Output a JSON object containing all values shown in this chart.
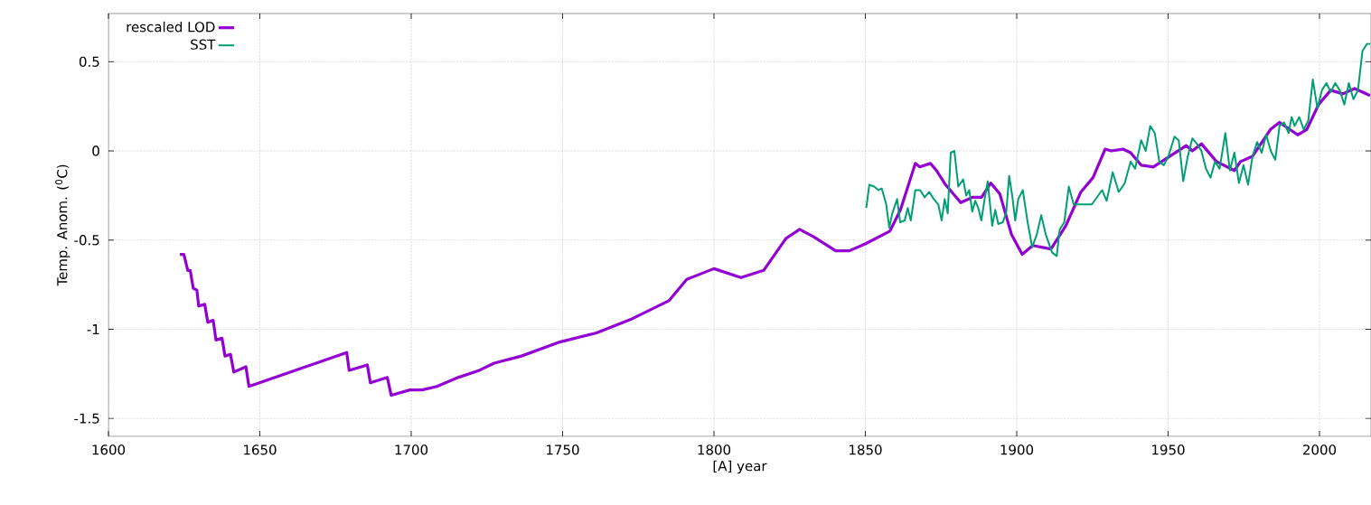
{
  "chart_data": {
    "type": "line",
    "xlabel": "[A]   year",
    "ylabel": "Temp. Anom. ($^{0}$C)",
    "xlim": [
      1600,
      2017
    ],
    "ylim": [
      -1.6,
      0.77
    ],
    "xticks": [
      1600,
      1650,
      1700,
      1750,
      1800,
      1850,
      1900,
      1950,
      2000
    ],
    "yticks": [
      -1.5,
      -1,
      -0.5,
      0,
      0.5
    ],
    "grid": true,
    "legend": "top left",
    "marker": "none",
    "line_style": "solid",
    "series": [
      {
        "name": "rescaled LOD",
        "color": "#9400d3",
        "x": [
          1623.6,
          1624.9,
          1626.2,
          1627.0,
          1628.0,
          1629.2,
          1629.8,
          1631.8,
          1632.8,
          1634.6,
          1635.5,
          1637.5,
          1638.5,
          1640.3,
          1641.4,
          1645.4,
          1646.4,
          1678.7,
          1679.5,
          1685.5,
          1686.5,
          1692.1,
          1693.4,
          1699.6,
          1703.6,
          1708.5,
          1715.5,
          1722.5,
          1727.4,
          1736.4,
          1749.3,
          1761.2,
          1773.1,
          1785.1,
          1791.0,
          1800.0,
          1808.9,
          1816.4,
          1823.8,
          1828.3,
          1832.8,
          1840.2,
          1844.7,
          1850.1,
          1858.1,
          1861.6,
          1866.5,
          1868.0,
          1871.5,
          1873.5,
          1876.5,
          1881.5,
          1885.4,
          1888.4,
          1891.4,
          1894.4,
          1898.3,
          1901.8,
          1905.3,
          1911.3,
          1916.2,
          1921.2,
          1925.2,
          1929.2,
          1931.2,
          1935.1,
          1937.6,
          1941.1,
          1945.1,
          1956.0,
          1958.0,
          1961.0,
          1966.0,
          1971.9,
          1973.9,
          1977.9,
          1983.8,
          1986.8,
          1992.8,
          1995.8,
          1999.7,
          2003.7,
          2007.7,
          2011.6,
          2016.7
        ],
        "values": [
          -0.58,
          -0.58,
          -0.67,
          -0.67,
          -0.77,
          -0.78,
          -0.87,
          -0.86,
          -0.96,
          -0.95,
          -1.06,
          -1.05,
          -1.15,
          -1.14,
          -1.24,
          -1.21,
          -1.32,
          -1.13,
          -1.23,
          -1.2,
          -1.3,
          -1.27,
          -1.37,
          -1.34,
          -1.34,
          -1.32,
          -1.27,
          -1.23,
          -1.19,
          -1.15,
          -1.07,
          -1.02,
          -0.94,
          -0.84,
          -0.72,
          -0.66,
          -0.71,
          -0.67,
          -0.49,
          -0.44,
          -0.48,
          -0.56,
          -0.56,
          -0.52,
          -0.45,
          -0.33,
          -0.07,
          -0.09,
          -0.07,
          -0.11,
          -0.19,
          -0.29,
          -0.26,
          -0.26,
          -0.18,
          -0.24,
          -0.47,
          -0.58,
          -0.53,
          -0.55,
          -0.42,
          -0.23,
          -0.15,
          0.01,
          0.0,
          0.01,
          -0.01,
          -0.08,
          -0.09,
          0.03,
          0.0,
          0.04,
          -0.06,
          -0.11,
          -0.06,
          -0.03,
          0.12,
          0.16,
          0.09,
          0.12,
          0.26,
          0.34,
          0.32,
          0.35,
          0.31
        ]
      },
      {
        "name": "SST",
        "color": "#009e73",
        "x": [
          1850.3,
          1851.3,
          1852.9,
          1854.4,
          1855.4,
          1856.9,
          1857.9,
          1858.9,
          1860.5,
          1861.5,
          1863.0,
          1864.0,
          1865.0,
          1866.5,
          1868.1,
          1869.6,
          1871.1,
          1872.6,
          1874.1,
          1875.2,
          1876.2,
          1877.2,
          1878.2,
          1879.4,
          1880.7,
          1882.3,
          1883.3,
          1884.3,
          1885.3,
          1886.3,
          1887.3,
          1888.3,
          1889.4,
          1890.4,
          1891.9,
          1892.9,
          1893.9,
          1895.4,
          1896.5,
          1897.5,
          1898.5,
          1899.5,
          1900.5,
          1902.0,
          1903.6,
          1905.1,
          1906.6,
          1908.1,
          1909.6,
          1911.7,
          1913.2,
          1914.2,
          1915.7,
          1917.2,
          1918.8,
          1924.8,
          1928.2,
          1929.7,
          1931.7,
          1933.7,
          1935.7,
          1937.6,
          1939.1,
          1941.1,
          1942.6,
          1944.1,
          1945.6,
          1947.1,
          1948.6,
          1950.1,
          1952.1,
          1953.5,
          1955.0,
          1956.5,
          1958.0,
          1959.5,
          1961.0,
          1962.5,
          1964.0,
          1965.5,
          1967.0,
          1968.9,
          1970.4,
          1971.9,
          1973.4,
          1974.9,
          1976.4,
          1977.9,
          1979.4,
          1980.9,
          1982.4,
          1983.9,
          1985.4,
          1986.8,
          1988.3,
          1989.8,
          1990.8,
          1991.8,
          1993.3,
          1994.8,
          1996.3,
          1997.8,
          1999.3,
          2000.8,
          2002.3,
          2003.7,
          2005.2,
          2006.7,
          2008.2,
          2009.7,
          2011.2,
          2012.7,
          2014.2,
          2015.7,
          2016.8
        ],
        "values": [
          -0.32,
          -0.19,
          -0.2,
          -0.22,
          -0.21,
          -0.3,
          -0.43,
          -0.35,
          -0.27,
          -0.4,
          -0.39,
          -0.32,
          -0.39,
          -0.22,
          -0.22,
          -0.26,
          -0.23,
          -0.27,
          -0.3,
          -0.39,
          -0.27,
          -0.35,
          -0.01,
          0.0,
          -0.2,
          -0.16,
          -0.25,
          -0.22,
          -0.34,
          -0.28,
          -0.32,
          -0.39,
          -0.27,
          -0.17,
          -0.42,
          -0.33,
          -0.41,
          -0.4,
          -0.35,
          -0.14,
          -0.25,
          -0.39,
          -0.27,
          -0.22,
          -0.4,
          -0.54,
          -0.47,
          -0.36,
          -0.47,
          -0.57,
          -0.59,
          -0.44,
          -0.4,
          -0.2,
          -0.3,
          -0.3,
          -0.22,
          -0.28,
          -0.12,
          -0.23,
          -0.18,
          -0.06,
          -0.1,
          0.06,
          0.0,
          0.14,
          0.1,
          -0.06,
          -0.08,
          -0.03,
          0.08,
          0.06,
          -0.17,
          -0.03,
          0.07,
          0.04,
          0.0,
          -0.1,
          -0.15,
          -0.06,
          -0.1,
          0.1,
          -0.11,
          -0.01,
          -0.18,
          -0.08,
          -0.19,
          -0.03,
          0.05,
          -0.01,
          0.09,
          0.0,
          -0.05,
          0.14,
          0.16,
          0.1,
          0.19,
          0.14,
          0.19,
          0.12,
          0.17,
          0.4,
          0.24,
          0.34,
          0.38,
          0.33,
          0.38,
          0.34,
          0.26,
          0.38,
          0.29,
          0.34,
          0.56,
          0.6,
          0.6
        ]
      }
    ]
  }
}
